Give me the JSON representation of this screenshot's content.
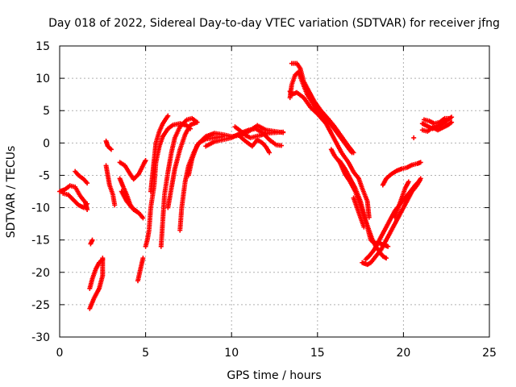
{
  "chart_data": {
    "type": "scatter",
    "title": "Day 018 of 2022, Sidereal Day-to-day VTEC variation (SDTVAR) for receiver jfng",
    "xlabel": "GPS time / hours",
    "ylabel": "SDTVAR / TECUs",
    "xlim": [
      0,
      25
    ],
    "ylim": [
      -30,
      15
    ],
    "xticks": [
      0,
      5,
      10,
      15,
      20,
      25
    ],
    "yticks": [
      -30,
      -25,
      -20,
      -15,
      -10,
      -5,
      0,
      5,
      10,
      15
    ],
    "grid": true,
    "marker": "+",
    "color": "#ff0000",
    "tracks": [
      [
        [
          0,
          -7.5
        ],
        [
          0.3,
          -7.2
        ],
        [
          0.6,
          -6.6
        ],
        [
          0.9,
          -6.8
        ],
        [
          1.2,
          -8.2
        ],
        [
          1.5,
          -9.2
        ],
        [
          1.6,
          -10.3
        ]
      ],
      [
        [
          0.2,
          -7.8
        ],
        [
          0.5,
          -8.0
        ],
        [
          0.8,
          -8.8
        ],
        [
          1.1,
          -9.6
        ],
        [
          1.4,
          -10.0
        ],
        [
          1.6,
          -9.4
        ]
      ],
      [
        [
          0.9,
          -4.4
        ],
        [
          1.1,
          -5.0
        ],
        [
          1.4,
          -5.6
        ],
        [
          1.6,
          -6.2
        ]
      ],
      [
        [
          1.8,
          -15.6
        ],
        [
          1.9,
          -15.0
        ]
      ],
      [
        [
          1.75,
          -25.6
        ],
        [
          2.0,
          -24.0
        ],
        [
          2.3,
          -22.5
        ],
        [
          2.5,
          -20.5
        ],
        [
          2.5,
          -19.0
        ],
        [
          2.5,
          -17.8
        ]
      ],
      [
        [
          1.75,
          -22.5
        ],
        [
          1.9,
          -21.0
        ],
        [
          2.1,
          -19.5
        ],
        [
          2.3,
          -18.5
        ],
        [
          2.5,
          -18.0
        ]
      ],
      [
        [
          2.7,
          -3.5
        ],
        [
          2.8,
          -5.0
        ],
        [
          2.9,
          -6.5
        ],
        [
          3.1,
          -8.0
        ],
        [
          3.2,
          -9.6
        ]
      ],
      [
        [
          2.7,
          0.3
        ],
        [
          2.8,
          -0.5
        ],
        [
          3.0,
          -1.0
        ]
      ],
      [
        [
          3.5,
          -3.0
        ],
        [
          3.8,
          -3.5
        ],
        [
          4.1,
          -4.8
        ],
        [
          4.3,
          -5.6
        ],
        [
          4.6,
          -4.8
        ],
        [
          4.9,
          -3.2
        ],
        [
          5.0,
          -2.7
        ]
      ],
      [
        [
          3.5,
          -5.5
        ],
        [
          3.7,
          -6.8
        ],
        [
          3.9,
          -8.0
        ],
        [
          4.1,
          -9.5
        ],
        [
          4.3,
          -10.3
        ],
        [
          4.6,
          -10.8
        ],
        [
          4.85,
          -11.6
        ]
      ],
      [
        [
          3.6,
          -7.5
        ],
        [
          3.9,
          -9.0
        ],
        [
          4.2,
          -10.0
        ],
        [
          4.5,
          -10.6
        ]
      ],
      [
        [
          4.55,
          -21.3
        ],
        [
          4.7,
          -19.5
        ],
        [
          4.85,
          -17.8
        ]
      ],
      [
        [
          5.0,
          -16.0
        ],
        [
          5.1,
          -15.0
        ],
        [
          5.2,
          -13.5
        ],
        [
          5.3,
          -10.0
        ],
        [
          5.5,
          -6.5
        ],
        [
          5.6,
          -3.0
        ],
        [
          5.8,
          -0.5
        ],
        [
          6.0,
          1.0
        ],
        [
          6.3,
          2.2
        ],
        [
          6.6,
          2.8
        ],
        [
          7.0,
          3.0
        ],
        [
          7.4,
          2.7
        ],
        [
          7.6,
          2.2
        ]
      ],
      [
        [
          5.3,
          -7.5
        ],
        [
          5.4,
          -5.0
        ],
        [
          5.5,
          -2.5
        ],
        [
          5.6,
          0.0
        ],
        [
          5.8,
          1.8
        ],
        [
          6.0,
          3.0
        ],
        [
          6.2,
          3.8
        ],
        [
          6.3,
          4.2
        ]
      ],
      [
        [
          5.9,
          -16.0
        ],
        [
          6.0,
          -12.0
        ],
        [
          6.1,
          -8.0
        ],
        [
          6.3,
          -4.5
        ],
        [
          6.5,
          -1.5
        ],
        [
          6.7,
          0.8
        ],
        [
          7.0,
          2.5
        ],
        [
          7.4,
          3.6
        ],
        [
          7.7,
          3.8
        ],
        [
          8.0,
          3.2
        ]
      ],
      [
        [
          6.3,
          -10.0
        ],
        [
          6.5,
          -7.0
        ],
        [
          6.7,
          -4.0
        ],
        [
          7.0,
          -1.0
        ],
        [
          7.3,
          1.3
        ],
        [
          7.6,
          2.8
        ],
        [
          8.0,
          3.2
        ]
      ],
      [
        [
          7.0,
          -13.5
        ],
        [
          7.1,
          -10.0
        ],
        [
          7.3,
          -6.0
        ],
        [
          7.5,
          -3.5
        ],
        [
          7.8,
          -1.5
        ],
        [
          8.1,
          0.0
        ],
        [
          8.5,
          0.6
        ],
        [
          9.0,
          0.8
        ],
        [
          9.5,
          1.0
        ]
      ],
      [
        [
          7.5,
          -5.0
        ],
        [
          7.7,
          -2.5
        ],
        [
          8.0,
          -0.3
        ],
        [
          8.5,
          1.0
        ],
        [
          9.0,
          1.5
        ],
        [
          9.5,
          1.3
        ],
        [
          10.0,
          1.0
        ],
        [
          10.5,
          1.2
        ],
        [
          11.0,
          1.8
        ],
        [
          11.5,
          2.7
        ],
        [
          12.0,
          2.0
        ],
        [
          12.5,
          1.8
        ],
        [
          13.0,
          1.6
        ]
      ],
      [
        [
          8.5,
          -0.5
        ],
        [
          9.0,
          0.2
        ],
        [
          9.5,
          0.5
        ],
        [
          10.0,
          0.8
        ],
        [
          10.5,
          1.5
        ],
        [
          11.0,
          2.0
        ],
        [
          11.4,
          2.2
        ],
        [
          11.8,
          1.6
        ],
        [
          12.2,
          0.5
        ],
        [
          12.6,
          -0.3
        ],
        [
          12.9,
          -0.4
        ]
      ],
      [
        [
          10.2,
          2.5
        ],
        [
          10.5,
          1.9
        ],
        [
          10.8,
          1.2
        ],
        [
          11.1,
          0.8
        ],
        [
          11.4,
          1.0
        ],
        [
          11.7,
          1.2
        ],
        [
          12.0,
          1.5
        ],
        [
          12.5,
          1.6
        ],
        [
          13.0,
          1.7
        ]
      ],
      [
        [
          10.5,
          1.0
        ],
        [
          10.8,
          0.3
        ],
        [
          11.2,
          -0.5
        ],
        [
          11.5,
          0.5
        ],
        [
          11.8,
          0.0
        ],
        [
          12.0,
          -0.6
        ],
        [
          12.2,
          -1.5
        ]
      ],
      [
        [
          13.5,
          12.3
        ],
        [
          13.8,
          12.3
        ],
        [
          14.0,
          11.5
        ],
        [
          14.2,
          9.5
        ],
        [
          14.5,
          8.0
        ],
        [
          14.8,
          6.5
        ],
        [
          15.2,
          5.0
        ],
        [
          15.6,
          3.8
        ],
        [
          16.0,
          2.5
        ],
        [
          16.4,
          1.0
        ],
        [
          16.8,
          -0.5
        ],
        [
          17.1,
          -1.5
        ]
      ],
      [
        [
          13.4,
          7.0
        ],
        [
          13.5,
          9.0
        ],
        [
          13.7,
          10.5
        ],
        [
          13.9,
          11.0
        ],
        [
          14.1,
          9.5
        ],
        [
          14.4,
          7.5
        ],
        [
          14.8,
          5.8
        ],
        [
          15.3,
          4.2
        ],
        [
          15.8,
          2.8
        ],
        [
          16.3,
          1.0
        ],
        [
          16.8,
          -0.8
        ],
        [
          17.0,
          -1.5
        ]
      ],
      [
        [
          13.4,
          8.0
        ],
        [
          13.5,
          7.5
        ],
        [
          13.8,
          7.8
        ],
        [
          14.2,
          7.0
        ],
        [
          14.6,
          5.5
        ],
        [
          15.0,
          4.5
        ],
        [
          15.5,
          3.0
        ],
        [
          15.8,
          1.5
        ],
        [
          16.1,
          0.0
        ],
        [
          16.4,
          -1.5
        ],
        [
          16.8,
          -3.0
        ],
        [
          17.1,
          -4.5
        ],
        [
          17.4,
          -5.5
        ],
        [
          17.6,
          -7.0
        ],
        [
          17.9,
          -9.0
        ],
        [
          18.0,
          -11.5
        ]
      ],
      [
        [
          15.8,
          -1.0
        ],
        [
          16.0,
          -2.0
        ],
        [
          16.3,
          -3.0
        ],
        [
          16.6,
          -4.8
        ],
        [
          16.9,
          -6.0
        ],
        [
          17.2,
          -7.5
        ],
        [
          17.4,
          -9.0
        ],
        [
          17.6,
          -10.5
        ],
        [
          17.8,
          -12.0
        ],
        [
          18.0,
          -13.5
        ],
        [
          18.2,
          -15.0
        ],
        [
          18.4,
          -16.0
        ],
        [
          18.6,
          -16.8
        ],
        [
          18.8,
          -17.5
        ],
        [
          19.0,
          -17.8
        ]
      ],
      [
        [
          16.3,
          -2.8
        ],
        [
          16.6,
          -4.0
        ],
        [
          16.9,
          -5.5
        ],
        [
          17.2,
          -7.0
        ],
        [
          17.5,
          -9.0
        ],
        [
          17.8,
          -12.0
        ],
        [
          18.0,
          -14.0
        ],
        [
          18.1,
          -15.0
        ],
        [
          18.3,
          -15.5
        ],
        [
          18.6,
          -15.5
        ],
        [
          18.9,
          -15.8
        ],
        [
          19.1,
          -16.0
        ]
      ],
      [
        [
          17.1,
          -8.5
        ],
        [
          17.3,
          -10.0
        ],
        [
          17.5,
          -11.5
        ],
        [
          17.7,
          -13.0
        ]
      ],
      [
        [
          17.6,
          -18.5
        ],
        [
          17.9,
          -18.8
        ],
        [
          18.1,
          -18.5
        ],
        [
          18.4,
          -17.5
        ],
        [
          18.7,
          -16.5
        ],
        [
          19.0,
          -15.0
        ],
        [
          19.3,
          -13.5
        ],
        [
          19.6,
          -12.0
        ],
        [
          19.9,
          -10.5
        ],
        [
          20.2,
          -9.0
        ],
        [
          20.5,
          -7.5
        ],
        [
          20.8,
          -6.5
        ],
        [
          21.0,
          -5.5
        ]
      ],
      [
        [
          17.8,
          -18.0
        ],
        [
          18.0,
          -17.5
        ],
        [
          18.3,
          -16.5
        ],
        [
          18.6,
          -15.0
        ],
        [
          18.9,
          -13.5
        ],
        [
          19.2,
          -12.0
        ],
        [
          19.5,
          -10.5
        ],
        [
          19.8,
          -9.5
        ],
        [
          20.1,
          -8.5
        ],
        [
          20.4,
          -7.5
        ],
        [
          20.7,
          -6.5
        ],
        [
          20.95,
          -5.8
        ]
      ],
      [
        [
          18.8,
          -6.5
        ],
        [
          19.0,
          -5.5
        ],
        [
          19.3,
          -4.8
        ],
        [
          19.6,
          -4.3
        ],
        [
          19.9,
          -4.0
        ],
        [
          20.2,
          -3.8
        ],
        [
          20.5,
          -3.4
        ],
        [
          20.8,
          -3.2
        ],
        [
          21.0,
          -3.0
        ]
      ],
      [
        [
          19.5,
          -11.5
        ],
        [
          19.7,
          -10.0
        ],
        [
          19.9,
          -8.5
        ],
        [
          20.1,
          -7.0
        ],
        [
          20.3,
          -6.0
        ]
      ],
      [
        [
          20.6,
          0.8
        ]
      ],
      [
        [
          21.1,
          3.0
        ],
        [
          21.4,
          2.6
        ],
        [
          21.7,
          2.2
        ],
        [
          22.0,
          2.6
        ],
        [
          22.3,
          3.0
        ],
        [
          22.6,
          3.6
        ],
        [
          22.8,
          4.0
        ]
      ],
      [
        [
          21.1,
          2.0
        ],
        [
          21.4,
          1.8
        ],
        [
          21.7,
          2.4
        ],
        [
          22.0,
          2.0
        ],
        [
          22.3,
          2.4
        ],
        [
          22.6,
          2.8
        ],
        [
          22.8,
          3.2
        ]
      ],
      [
        [
          21.2,
          3.6
        ],
        [
          21.5,
          3.4
        ],
        [
          21.8,
          3.0
        ],
        [
          22.1,
          3.2
        ],
        [
          22.4,
          3.8
        ],
        [
          22.7,
          3.8
        ]
      ]
    ]
  }
}
